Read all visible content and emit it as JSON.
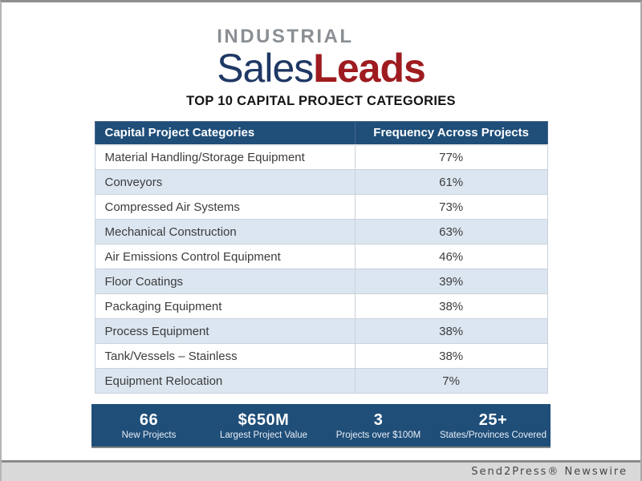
{
  "logo": {
    "industrial": "INDUSTRIAL",
    "sales": "Sales",
    "leads": "Leads"
  },
  "title": "TOP 10 CAPITAL PROJECT CATEGORIES",
  "table": {
    "headers": [
      "Capital Project Categories",
      "Frequency Across Projects"
    ],
    "rows": [
      {
        "category": "Material Handling/Storage Equipment",
        "frequency": "77%"
      },
      {
        "category": "Conveyors",
        "frequency": "61%"
      },
      {
        "category": "Compressed Air Systems",
        "frequency": "73%"
      },
      {
        "category": "Mechanical Construction",
        "frequency": "63%"
      },
      {
        "category": "Air Emissions Control Equipment",
        "frequency": "46%"
      },
      {
        "category": "Floor Coatings",
        "frequency": "39%"
      },
      {
        "category": "Packaging Equipment",
        "frequency": "38%"
      },
      {
        "category": "Process Equipment",
        "frequency": "38%"
      },
      {
        "category": "Tank/Vessels – Stainless",
        "frequency": "38%"
      },
      {
        "category": "Equipment Relocation",
        "frequency": "7%"
      }
    ]
  },
  "stats": [
    {
      "value": "66",
      "label": "New Projects"
    },
    {
      "value": "$650M",
      "label": "Largest Project Value"
    },
    {
      "value": "3",
      "label": "Projects over $100M"
    },
    {
      "value": "25+",
      "label": "States/Provinces Covered"
    }
  ],
  "footer": {
    "credit": "Send2Press® Newswire"
  },
  "colors": {
    "navy": "#1F4E79",
    "logo_navy": "#1F3864",
    "logo_red": "#9E1B20",
    "logo_gray": "#8A8F94",
    "row_alt": "#DCE6F1"
  },
  "chart_data": {
    "type": "table",
    "title": "TOP 10 CAPITAL PROJECT CATEGORIES",
    "columns": [
      "Capital Project Categories",
      "Frequency Across Projects"
    ],
    "categories": [
      "Material Handling/Storage Equipment",
      "Conveyors",
      "Compressed Air Systems",
      "Mechanical Construction",
      "Air Emissions Control Equipment",
      "Floor Coatings",
      "Packaging Equipment",
      "Process Equipment",
      "Tank/Vessels – Stainless",
      "Equipment Relocation"
    ],
    "values": [
      77,
      61,
      73,
      63,
      46,
      39,
      38,
      38,
      38,
      7
    ],
    "units": "%",
    "summary_stats": [
      {
        "value": "66",
        "label": "New Projects"
      },
      {
        "value": "$650M",
        "label": "Largest Project Value"
      },
      {
        "value": "3",
        "label": "Projects over $100M"
      },
      {
        "value": "25+",
        "label": "States/Provinces Covered"
      }
    ]
  }
}
